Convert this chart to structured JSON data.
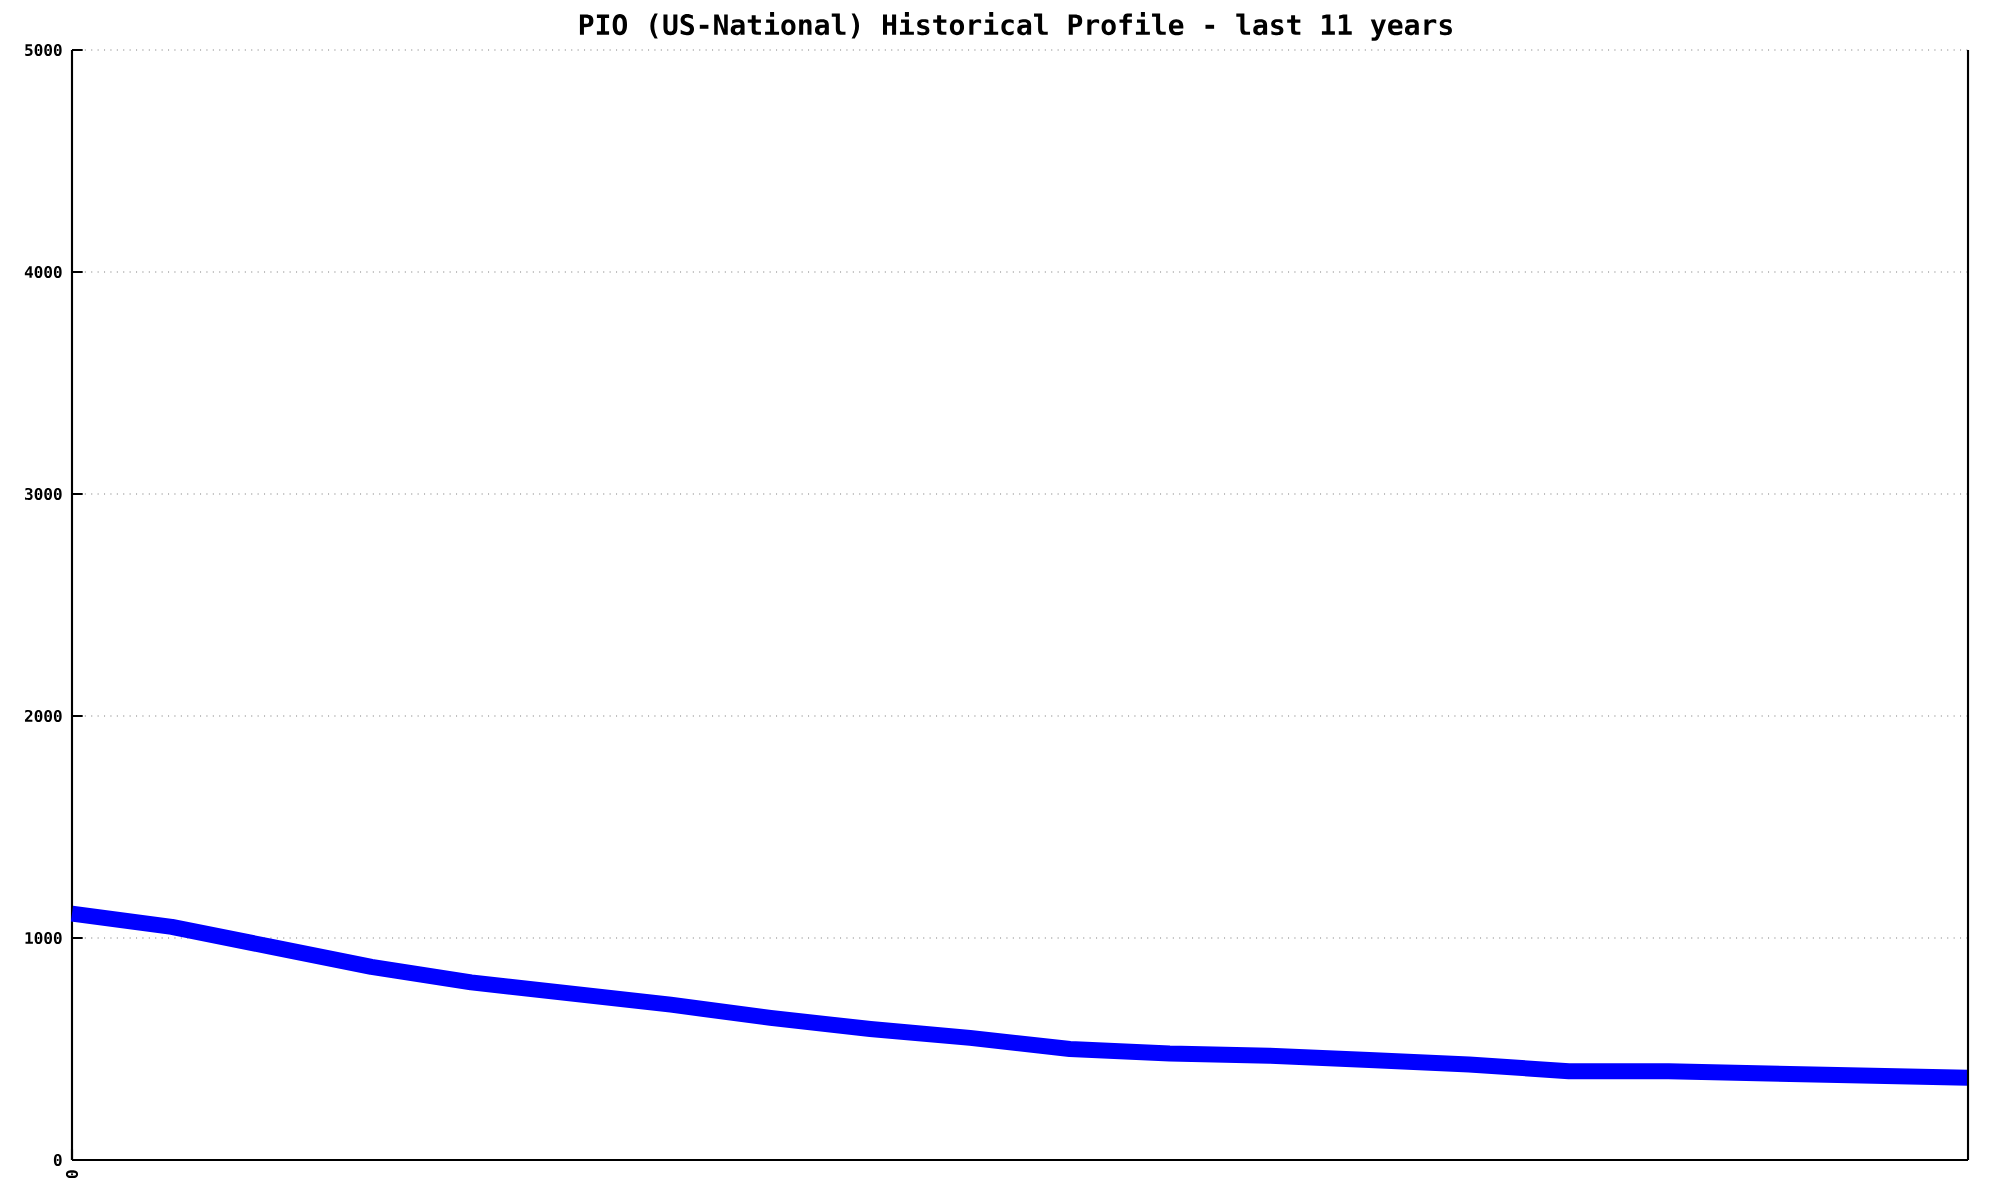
{
  "chart_data": {
    "type": "line",
    "title": "PIO (US-National) Historical Profile - last 11 years",
    "categories": [
      "0",
      null,
      null,
      null,
      null,
      null,
      null,
      null,
      null,
      null,
      null,
      null,
      null,
      null,
      null,
      null,
      null,
      null,
      null,
      null
    ],
    "values": [
      1110,
      1050,
      960,
      870,
      800,
      750,
      700,
      640,
      590,
      550,
      500,
      480,
      470,
      450,
      430,
      400,
      400,
      390,
      380,
      370
    ],
    "color": "#0000ff",
    "ylim": [
      0,
      5000
    ],
    "yticks": [
      0,
      1000,
      2000,
      3000,
      4000,
      5000
    ],
    "grid": "y"
  }
}
